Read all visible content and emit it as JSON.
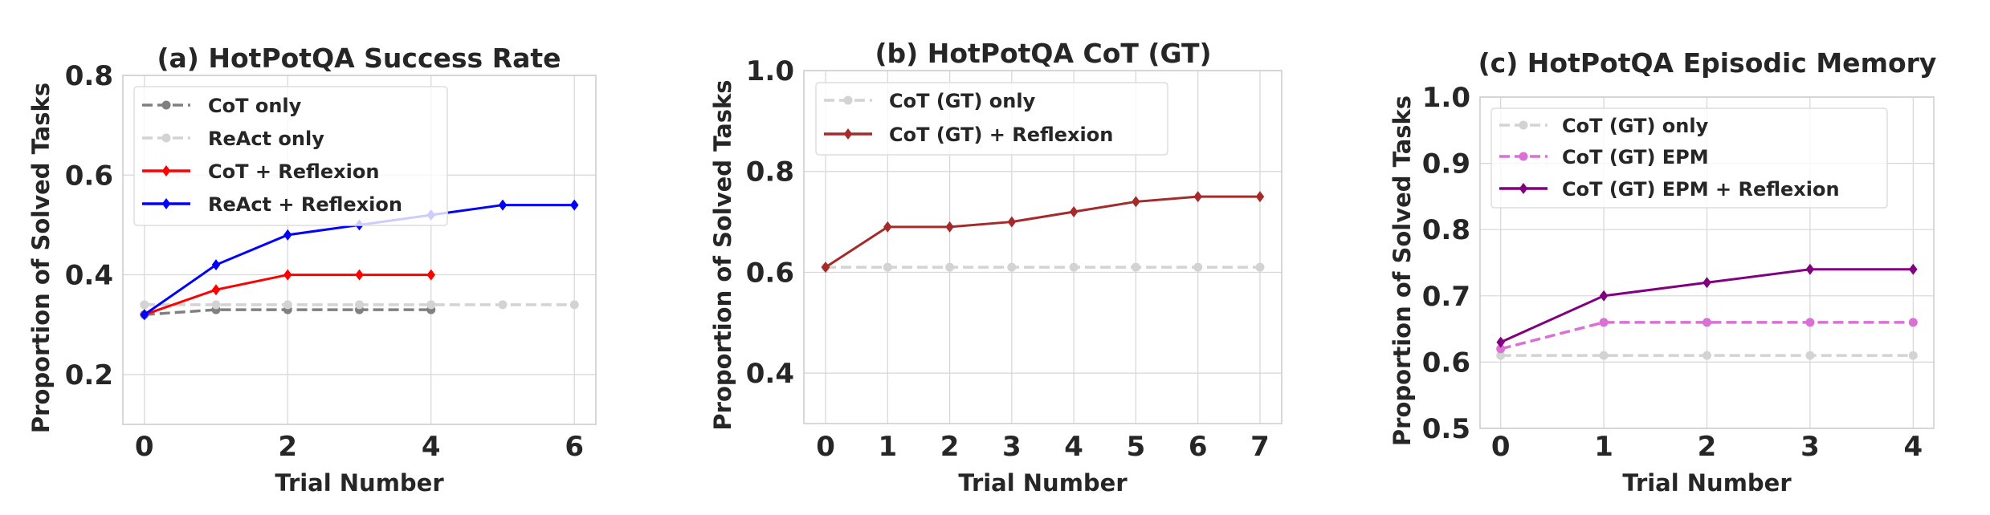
{
  "chart_data": [
    {
      "type": "line",
      "title": "(a) HotPotQA Success Rate",
      "xlabel": "Trial Number",
      "ylabel": "Proportion of Solved Tasks",
      "xlim": [
        -0.3,
        6.3
      ],
      "ylim": [
        0.1,
        0.8
      ],
      "xticks": [
        0,
        2,
        4,
        6
      ],
      "yticks": [
        0.2,
        0.4,
        0.6,
        0.8
      ],
      "xtick_labels": [
        "0",
        "2",
        "4",
        "6"
      ],
      "ytick_labels": [
        "0.2",
        "0.4",
        "0.6",
        "0.8"
      ],
      "grid": true,
      "legend_position": "top-left",
      "series": [
        {
          "name": "CoT only",
          "color": "#808080",
          "style": "dashed",
          "marker": "circle",
          "x": [
            0,
            1,
            2,
            3,
            4
          ],
          "y": [
            0.32,
            0.33,
            0.33,
            0.33,
            0.33
          ]
        },
        {
          "name": "ReAct only",
          "color": "#d3d3d3",
          "style": "dashed",
          "marker": "circle",
          "x": [
            0,
            1,
            2,
            3,
            4,
            5,
            6
          ],
          "y": [
            0.34,
            0.34,
            0.34,
            0.34,
            0.34,
            0.34,
            0.34
          ]
        },
        {
          "name": "CoT + Reflexion",
          "color": "#ff0000",
          "style": "solid",
          "marker": "diamond",
          "x": [
            0,
            1,
            2,
            3,
            4
          ],
          "y": [
            0.32,
            0.37,
            0.4,
            0.4,
            0.4
          ]
        },
        {
          "name": "ReAct + Reflexion",
          "color": "#0000ff",
          "style": "solid",
          "marker": "diamond",
          "x": [
            0,
            1,
            2,
            3,
            4,
            5,
            6
          ],
          "y": [
            0.32,
            0.42,
            0.48,
            0.5,
            0.52,
            0.54,
            0.54
          ]
        }
      ]
    },
    {
      "type": "line",
      "title": "(b) HotPotQA CoT (GT)",
      "xlabel": "Trial Number",
      "ylabel": "Proportion of Solved Tasks",
      "xlim": [
        -0.35,
        7.35
      ],
      "ylim": [
        0.3,
        1.0
      ],
      "xticks": [
        0,
        1,
        2,
        3,
        4,
        5,
        6,
        7
      ],
      "yticks": [
        0.4,
        0.6,
        0.8,
        1.0
      ],
      "xtick_labels": [
        "0",
        "1",
        "2",
        "3",
        "4",
        "5",
        "6",
        "7"
      ],
      "ytick_labels": [
        "0.4",
        "0.6",
        "0.8",
        "1.0"
      ],
      "grid": true,
      "legend_position": "top-left",
      "series": [
        {
          "name": "CoT (GT) only",
          "color": "#d3d3d3",
          "style": "dashed",
          "marker": "circle",
          "x": [
            0,
            1,
            2,
            3,
            4,
            5,
            6,
            7
          ],
          "y": [
            0.61,
            0.61,
            0.61,
            0.61,
            0.61,
            0.61,
            0.61,
            0.61
          ]
        },
        {
          "name": "CoT (GT) + Reflexion",
          "color": "#a52a2a",
          "style": "solid",
          "marker": "diamond",
          "x": [
            0,
            1,
            2,
            3,
            4,
            5,
            6,
            7
          ],
          "y": [
            0.61,
            0.69,
            0.69,
            0.7,
            0.72,
            0.74,
            0.75,
            0.75
          ]
        }
      ]
    },
    {
      "type": "line",
      "title": "(c) HotPotQA Episodic Memory",
      "xlabel": "Trial Number",
      "ylabel": "Proportion of Solved Tasks",
      "xlim": [
        -0.2,
        4.2
      ],
      "ylim": [
        0.5,
        1.0
      ],
      "xticks": [
        0,
        1,
        2,
        3,
        4
      ],
      "yticks": [
        0.5,
        0.6,
        0.7,
        0.8,
        0.9,
        1.0
      ],
      "xtick_labels": [
        "0",
        "1",
        "2",
        "3",
        "4"
      ],
      "ytick_labels": [
        "0.5",
        "0.6",
        "0.7",
        "0.8",
        "0.9",
        "1.0"
      ],
      "grid": true,
      "legend_position": "top-left",
      "series": [
        {
          "name": "CoT (GT) only",
          "color": "#d3d3d3",
          "style": "dashed",
          "marker": "circle",
          "x": [
            0,
            1,
            2,
            3,
            4
          ],
          "y": [
            0.61,
            0.61,
            0.61,
            0.61,
            0.61
          ]
        },
        {
          "name": "CoT (GT) EPM",
          "color": "#da70d6",
          "style": "dashed",
          "marker": "circle",
          "x": [
            0,
            1,
            2,
            3,
            4
          ],
          "y": [
            0.62,
            0.66,
            0.66,
            0.66,
            0.66
          ]
        },
        {
          "name": "CoT (GT) EPM + Reflexion",
          "color": "#800080",
          "style": "solid",
          "marker": "diamond",
          "x": [
            0,
            1,
            2,
            3,
            4
          ],
          "y": [
            0.63,
            0.7,
            0.72,
            0.74,
            0.74
          ]
        }
      ]
    }
  ]
}
